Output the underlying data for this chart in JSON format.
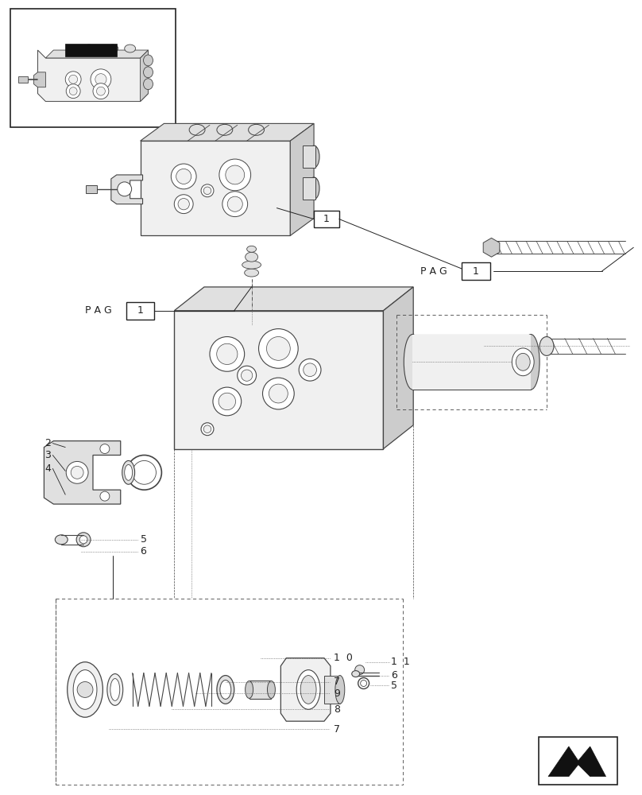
{
  "bg_color": "#ffffff",
  "lc": "#444444",
  "dc": "#222222",
  "figsize": [
    8.08,
    10.0
  ],
  "dpi": 100,
  "lw": 0.8,
  "fc_light": "#f0f0f0",
  "fc_mid": "#e0e0e0",
  "fc_dark": "#cccccc"
}
